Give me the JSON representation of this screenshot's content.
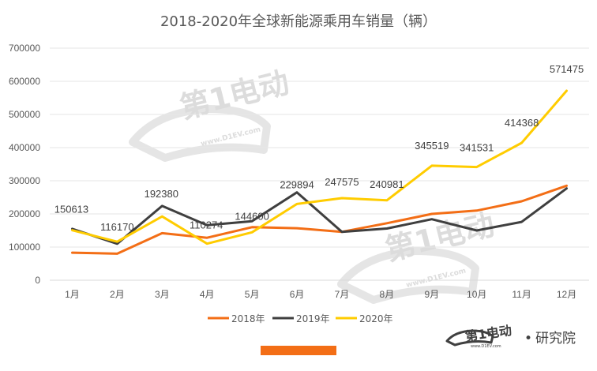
{
  "chart_data": {
    "type": "line",
    "title": "2018-2020年全球新能源乘用车销量（辆）",
    "categories": [
      "1月",
      "2月",
      "3月",
      "4月",
      "5月",
      "6月",
      "7月",
      "8月",
      "9月",
      "10月",
      "11月",
      "12月"
    ],
    "ylim": [
      0,
      700000
    ],
    "yticks": [
      "0",
      "100000",
      "200000",
      "300000",
      "400000",
      "500000",
      "600000",
      "700000"
    ],
    "grid": true,
    "legend_position": "bottom",
    "series": [
      {
        "name": "2018年",
        "color": "#f36e16",
        "values": [
          83000,
          80000,
          142000,
          128000,
          160000,
          157000,
          146000,
          172000,
          200000,
          210000,
          238000,
          285000
        ]
      },
      {
        "name": "2019年",
        "color": "#3f3f3f",
        "values": [
          155000,
          110000,
          224000,
          166000,
          178000,
          265000,
          146000,
          156000,
          184000,
          150000,
          176000,
          277000
        ]
      },
      {
        "name": "2020年",
        "color": "#ffcc00",
        "values": [
          150613,
          116170,
          192380,
          110274,
          144600,
          229894,
          247575,
          240981,
          345519,
          341531,
          414368,
          571475
        ]
      }
    ],
    "data_labels": [
      "150613",
      "116170",
      "192380",
      "110274",
      "144600",
      "229894",
      "247575",
      "240981",
      "345519",
      "341531",
      "414368",
      "571475"
    ]
  },
  "watermark": {
    "text": "第1电动",
    "url": "www.D1EV.com"
  },
  "brand": {
    "logo_text": "第1电动",
    "separator": "•",
    "name": "研究院",
    "url": "www.D1EV.com"
  },
  "accent_bar_color": "#f36e16"
}
